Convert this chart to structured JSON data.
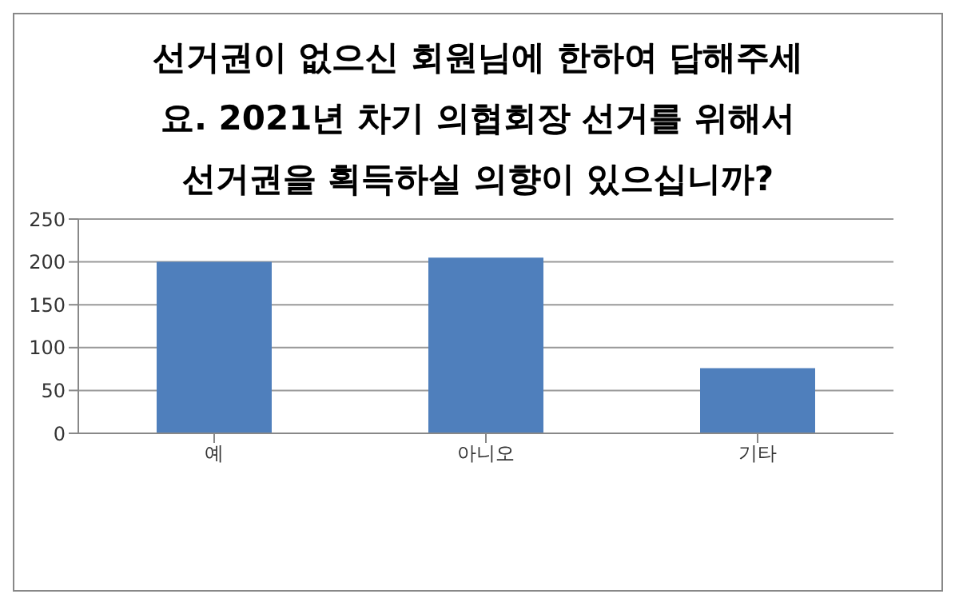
{
  "chart_data": {
    "type": "bar",
    "title": "선거권이 없으신 회원님에 한하여 답해주세요. 2021년 차기 의협회장 선거를 위해서 선거권을 획득하실 의향이 있으십니까?",
    "categories": [
      "예",
      "아니오",
      "기타"
    ],
    "values": [
      200,
      205,
      76
    ],
    "color": "#4f7fbc",
    "ylim": [
      0,
      250
    ],
    "yticks": [
      0,
      50,
      100,
      150,
      200,
      250
    ],
    "grid": "y"
  }
}
